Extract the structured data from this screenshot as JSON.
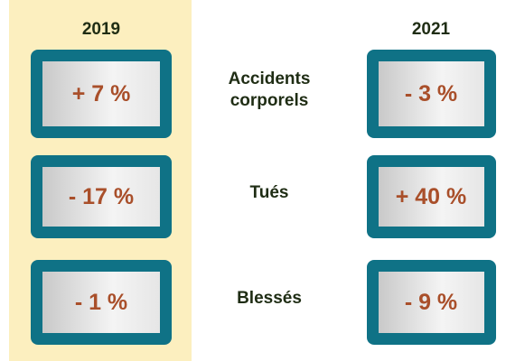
{
  "columns": [
    "2019",
    "2021"
  ],
  "rows": [
    {
      "label": "Accidents corporels",
      "values": [
        "+ 7 %",
        "- 3 %"
      ]
    },
    {
      "label": "Tués",
      "values": [
        "- 17 %",
        "+ 40 %"
      ]
    },
    {
      "label": "Blessés",
      "values": [
        "- 1 %",
        "- 9 %"
      ]
    }
  ]
}
